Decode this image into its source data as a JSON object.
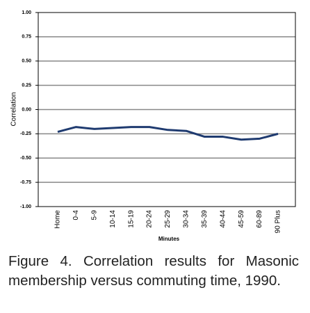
{
  "chart_data": {
    "type": "line",
    "x_label": "Minutes",
    "y_label": "Correlation",
    "categories": [
      "Home",
      "0-4",
      "5-9",
      "10-14",
      "15-19",
      "20-24",
      "25-29",
      "30-34",
      "35-39",
      "40-44",
      "45-59",
      "60-89",
      "90 Plus"
    ],
    "series": [
      {
        "color": "#1f3b70",
        "values": [
          -0.23,
          -0.18,
          -0.2,
          -0.19,
          -0.18,
          -0.18,
          -0.21,
          -0.22,
          -0.28,
          -0.28,
          -0.31,
          -0.3,
          -0.25
        ]
      }
    ],
    "ylim": [
      -1,
      1
    ],
    "yticks": [
      {
        "value": 1,
        "label": "1.00"
      },
      {
        "value": 0.75,
        "label": "0.75"
      },
      {
        "value": 0.5,
        "label": "0.50"
      },
      {
        "value": 0.25,
        "label": "0.25"
      },
      {
        "value": 0,
        "label": "0.00"
      },
      {
        "value": -0.25,
        "label": "-0.25"
      },
      {
        "value": -0.5,
        "label": "-0.50"
      },
      {
        "value": -0.75,
        "label": "-0.75"
      },
      {
        "value": -1,
        "label": "-1.00"
      }
    ],
    "grid": true,
    "caption": [
      "Figure 4. Correlation results for Masonic",
      "membership versus commuting time, 1990."
    ]
  }
}
